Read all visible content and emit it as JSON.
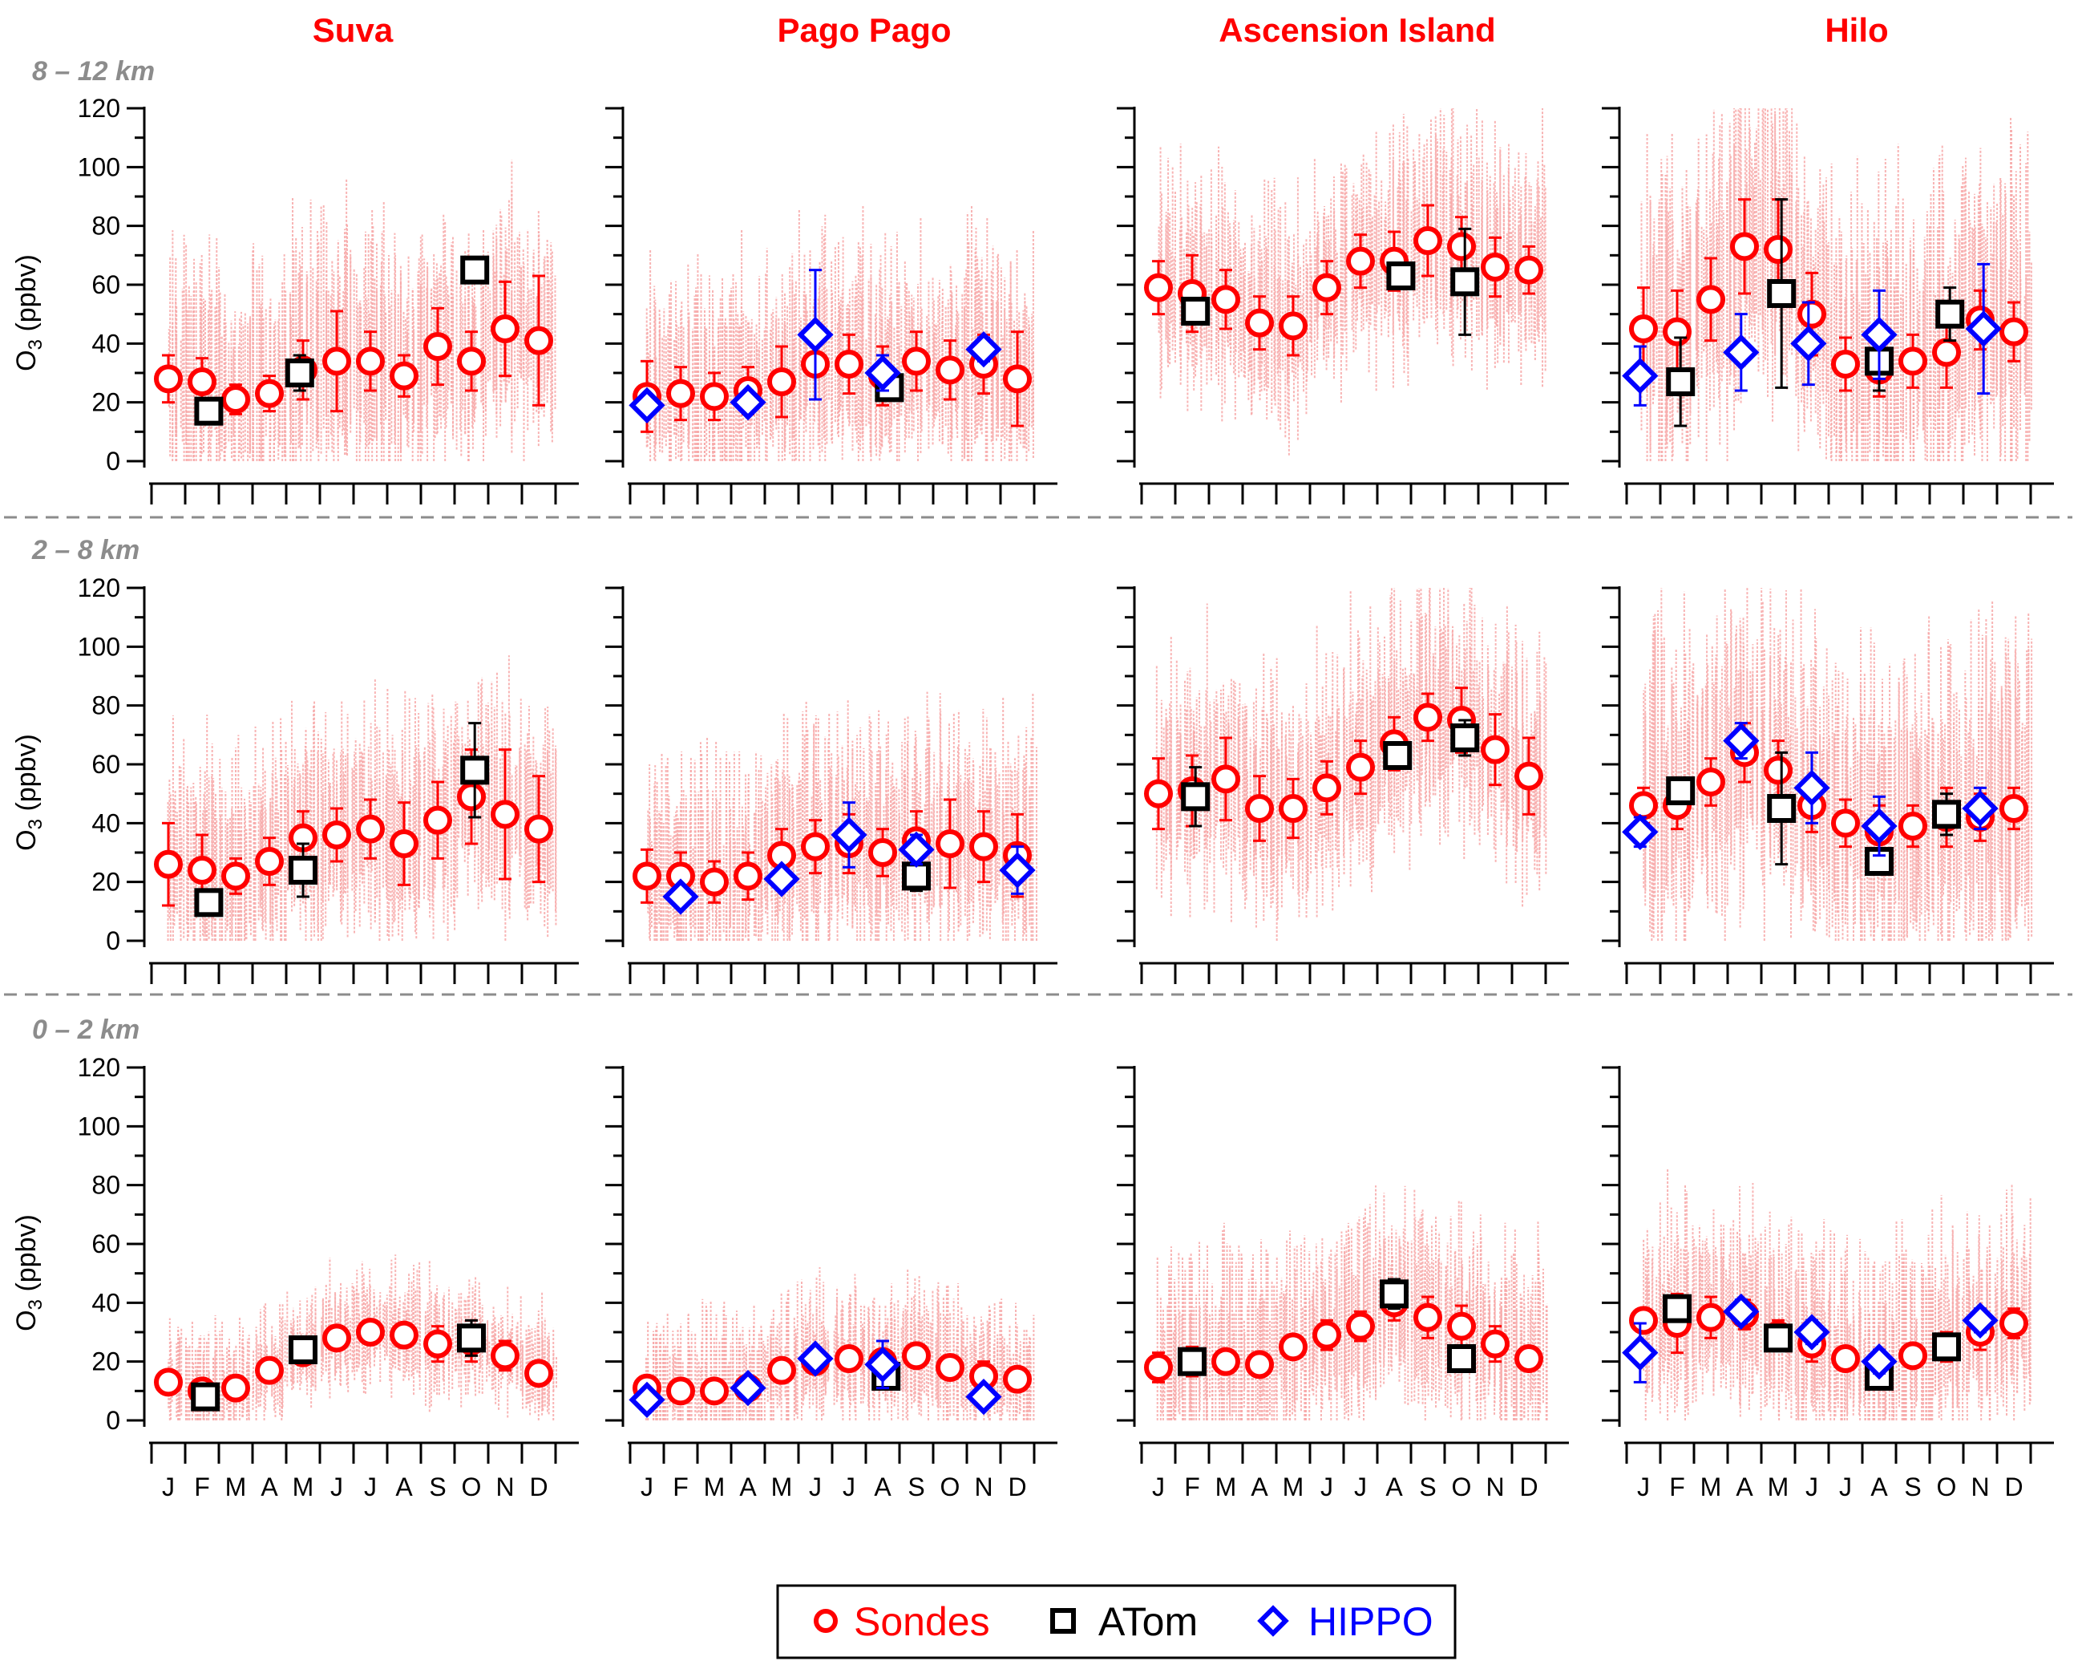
{
  "colors": {
    "sondes": "#ff0000",
    "atom": "#000000",
    "hippo": "#0000ff",
    "raw": "#f7a8a8",
    "title": "#ff0000",
    "band": "#8c8c8c",
    "separator": "#8c8c8c"
  },
  "y_axis": {
    "label": "O",
    "sub": "3",
    "unit": " (ppbv)",
    "ticks": [
      "0",
      "20",
      "40",
      "60",
      "80",
      "100",
      "120"
    ]
  },
  "month_labels": [
    "J",
    "F",
    "M",
    "A",
    "M",
    "J",
    "J",
    "A",
    "S",
    "O",
    "N",
    "D"
  ],
  "legend": {
    "sondes": "Sondes",
    "atom": "ATom",
    "hippo": "HIPPO"
  },
  "chart_data": {
    "type": "scatter",
    "xlabel": "",
    "ylabel": "O3 (ppbv)",
    "ylim": [
      0,
      120
    ],
    "x": [
      "J",
      "F",
      "M",
      "A",
      "M",
      "J",
      "J",
      "A",
      "S",
      "O",
      "N",
      "D"
    ],
    "grid": false,
    "legend_position": "bottom-center",
    "stations": [
      "Suva",
      "Pago Pago",
      "Ascension Island",
      "Hilo"
    ],
    "bands": [
      "8 – 12 km",
      "2 – 8 km",
      "0 – 2 km"
    ],
    "panels": [
      {
        "station": "Suva",
        "band": "8 – 12 km",
        "raw_level": 45,
        "raw_spread": 30,
        "sondes": [
          [
            1,
            28,
            8
          ],
          [
            2,
            27,
            8
          ],
          [
            3,
            21,
            5
          ],
          [
            4,
            23,
            6
          ],
          [
            5,
            31,
            10
          ],
          [
            6,
            34,
            17
          ],
          [
            7,
            34,
            10
          ],
          [
            8,
            29,
            7
          ],
          [
            9,
            39,
            13
          ],
          [
            10,
            34,
            10
          ],
          [
            11,
            45,
            16
          ],
          [
            12,
            41,
            22
          ]
        ],
        "atom": [
          [
            2.2,
            17,
            3
          ],
          [
            4.9,
            30,
            6
          ],
          [
            10.1,
            65,
            4
          ]
        ],
        "hippo": []
      },
      {
        "station": "Pago Pago",
        "band": "8 – 12 km",
        "raw_level": 35,
        "raw_spread": 28,
        "sondes": [
          [
            1,
            22,
            12
          ],
          [
            2,
            23,
            9
          ],
          [
            3,
            22,
            8
          ],
          [
            4,
            24,
            8
          ],
          [
            5,
            27,
            12
          ],
          [
            6,
            33,
            12
          ],
          [
            7,
            33,
            10
          ],
          [
            8,
            29,
            10
          ],
          [
            9,
            34,
            10
          ],
          [
            10,
            31,
            10
          ],
          [
            11,
            33,
            10
          ],
          [
            12,
            28,
            16
          ]
        ],
        "atom": [
          [
            8.2,
            25,
            4
          ]
        ],
        "hippo": [
          [
            1,
            19,
            3
          ],
          [
            4,
            20,
            3
          ],
          [
            6,
            43,
            22
          ],
          [
            8,
            30,
            6
          ],
          [
            11,
            38,
            4
          ]
        ]
      },
      {
        "station": "Ascension Island",
        "band": "8 – 12 km",
        "raw_level": 58,
        "raw_spread": 28,
        "sondes": [
          [
            1,
            59,
            9
          ],
          [
            2,
            57,
            13
          ],
          [
            3,
            55,
            10
          ],
          [
            4,
            47,
            9
          ],
          [
            5,
            46,
            10
          ],
          [
            6,
            59,
            9
          ],
          [
            7,
            68,
            9
          ],
          [
            8,
            68,
            10
          ],
          [
            9,
            75,
            12
          ],
          [
            10,
            73,
            10
          ],
          [
            11,
            66,
            10
          ],
          [
            12,
            65,
            8
          ]
        ],
        "atom": [
          [
            2.1,
            51,
            3
          ],
          [
            8.2,
            63,
            4
          ],
          [
            10.1,
            61,
            18
          ]
        ],
        "hippo": []
      },
      {
        "station": "Hilo",
        "band": "8 – 12 km",
        "raw_level": 55,
        "raw_spread": 40,
        "sondes": [
          [
            1,
            45,
            14
          ],
          [
            2,
            44,
            14
          ],
          [
            3,
            55,
            14
          ],
          [
            4,
            73,
            16
          ],
          [
            5,
            72,
            17
          ],
          [
            6,
            50,
            14
          ],
          [
            7,
            33,
            9
          ],
          [
            8,
            31,
            9
          ],
          [
            9,
            34,
            9
          ],
          [
            10,
            37,
            12
          ],
          [
            11,
            48,
            10
          ],
          [
            12,
            44,
            10
          ]
        ],
        "atom": [
          [
            2.1,
            27,
            15
          ],
          [
            5.1,
            57,
            32
          ],
          [
            8,
            34,
            10
          ],
          [
            10.1,
            50,
            9
          ]
        ],
        "hippo": [
          [
            0.9,
            29,
            10
          ],
          [
            3.9,
            37,
            13
          ],
          [
            5.9,
            40,
            14
          ],
          [
            8,
            43,
            15
          ],
          [
            11.1,
            45,
            22
          ]
        ]
      },
      {
        "station": "Suva",
        "band": "2 – 8 km",
        "raw_level": 42,
        "raw_spread": 28,
        "sondes": [
          [
            1,
            26,
            14
          ],
          [
            2,
            24,
            12
          ],
          [
            3,
            22,
            6
          ],
          [
            4,
            27,
            8
          ],
          [
            5,
            35,
            9
          ],
          [
            6,
            36,
            9
          ],
          [
            7,
            38,
            10
          ],
          [
            8,
            33,
            14
          ],
          [
            9,
            41,
            13
          ],
          [
            10,
            49,
            16
          ],
          [
            11,
            43,
            22
          ],
          [
            12,
            38,
            18
          ]
        ],
        "atom": [
          [
            2.2,
            13,
            3
          ],
          [
            5,
            24,
            9
          ],
          [
            10.1,
            58,
            16
          ]
        ],
        "hippo": []
      },
      {
        "station": "Pago Pago",
        "band": "2 – 8 km",
        "raw_level": 38,
        "raw_spread": 28,
        "sondes": [
          [
            1,
            22,
            9
          ],
          [
            2,
            22,
            8
          ],
          [
            3,
            20,
            7
          ],
          [
            4,
            22,
            8
          ],
          [
            5,
            29,
            9
          ],
          [
            6,
            32,
            9
          ],
          [
            7,
            33,
            10
          ],
          [
            8,
            30,
            8
          ],
          [
            9,
            34,
            10
          ],
          [
            10,
            33,
            15
          ],
          [
            11,
            32,
            12
          ],
          [
            12,
            29,
            14
          ]
        ],
        "atom": [
          [
            9,
            22,
            5
          ]
        ],
        "hippo": [
          [
            2,
            15,
            3
          ],
          [
            5,
            21,
            3
          ],
          [
            7,
            36,
            11
          ],
          [
            9,
            31,
            5
          ],
          [
            12,
            24,
            8
          ]
        ]
      },
      {
        "station": "Ascension Island",
        "band": "2 – 8 km",
        "raw_level": 55,
        "raw_spread": 30,
        "sondes": [
          [
            1,
            50,
            12
          ],
          [
            2,
            51,
            12
          ],
          [
            3,
            55,
            14
          ],
          [
            4,
            45,
            11
          ],
          [
            5,
            45,
            10
          ],
          [
            6,
            52,
            9
          ],
          [
            7,
            59,
            9
          ],
          [
            8,
            67,
            9
          ],
          [
            9,
            76,
            8
          ],
          [
            10,
            75,
            11
          ],
          [
            11,
            65,
            12
          ],
          [
            12,
            56,
            13
          ]
        ],
        "atom": [
          [
            2.1,
            49,
            10
          ],
          [
            8.1,
            63,
            4
          ],
          [
            10.1,
            69,
            6
          ]
        ],
        "hippo": []
      },
      {
        "station": "Hilo",
        "band": "2 – 8 km",
        "raw_level": 48,
        "raw_spread": 38,
        "sondes": [
          [
            1,
            46,
            6
          ],
          [
            2,
            46,
            8
          ],
          [
            3,
            54,
            8
          ],
          [
            4,
            64,
            10
          ],
          [
            5,
            58,
            10
          ],
          [
            6,
            46,
            9
          ],
          [
            7,
            40,
            8
          ],
          [
            8,
            37,
            9
          ],
          [
            9,
            39,
            7
          ],
          [
            10,
            42,
            10
          ],
          [
            11,
            42,
            8
          ],
          [
            12,
            45,
            7
          ]
        ],
        "atom": [
          [
            2.1,
            51,
            4
          ],
          [
            5.1,
            45,
            19
          ],
          [
            8,
            27,
            4
          ],
          [
            10,
            43,
            7
          ]
        ],
        "hippo": [
          [
            0.9,
            37,
            5
          ],
          [
            3.9,
            68,
            6
          ],
          [
            6,
            52,
            12
          ],
          [
            8,
            39,
            10
          ],
          [
            11,
            45,
            7
          ]
        ]
      },
      {
        "station": "Suva",
        "band": "0 – 2 km",
        "raw_level": 24,
        "raw_spread": 14,
        "sondes": [
          [
            1,
            13,
            3
          ],
          [
            2,
            10,
            4
          ],
          [
            3,
            11,
            3
          ],
          [
            4,
            17,
            4
          ],
          [
            5,
            23,
            4
          ],
          [
            6,
            28,
            4
          ],
          [
            7,
            30,
            4
          ],
          [
            8,
            29,
            4
          ],
          [
            9,
            26,
            6
          ],
          [
            10,
            27,
            7
          ],
          [
            11,
            22,
            5
          ],
          [
            12,
            16,
            4
          ]
        ],
        "atom": [
          [
            2.1,
            8,
            3
          ],
          [
            5,
            24,
            4
          ],
          [
            10,
            28,
            6
          ]
        ],
        "hippo": []
      },
      {
        "station": "Pago Pago",
        "band": "0 – 2 km",
        "raw_level": 18,
        "raw_spread": 16,
        "sondes": [
          [
            1,
            11,
            3
          ],
          [
            2,
            10,
            3
          ],
          [
            3,
            10,
            3
          ],
          [
            4,
            11,
            3
          ],
          [
            5,
            17,
            3
          ],
          [
            6,
            20,
            4
          ],
          [
            7,
            21,
            4
          ],
          [
            8,
            20,
            4
          ],
          [
            9,
            22,
            4
          ],
          [
            10,
            18,
            4
          ],
          [
            11,
            15,
            5
          ],
          [
            12,
            14,
            4
          ]
        ],
        "atom": [
          [
            8.1,
            15,
            3
          ]
        ],
        "hippo": [
          [
            1,
            7,
            2
          ],
          [
            4,
            11,
            2
          ],
          [
            6,
            21,
            3
          ],
          [
            8,
            19,
            8
          ],
          [
            11,
            8,
            2
          ]
        ]
      },
      {
        "station": "Ascension Island",
        "band": "0 – 2 km",
        "raw_level": 30,
        "raw_spread": 24,
        "sondes": [
          [
            1,
            18,
            5
          ],
          [
            2,
            20,
            5
          ],
          [
            3,
            20,
            4
          ],
          [
            4,
            19,
            4
          ],
          [
            5,
            25,
            4
          ],
          [
            6,
            29,
            5
          ],
          [
            7,
            32,
            5
          ],
          [
            8,
            40,
            6
          ],
          [
            9,
            35,
            7
          ],
          [
            10,
            32,
            7
          ],
          [
            11,
            26,
            6
          ],
          [
            12,
            21,
            4
          ]
        ],
        "atom": [
          [
            2,
            20,
            3
          ],
          [
            8,
            43,
            5
          ],
          [
            10,
            21,
            3
          ]
        ],
        "hippo": []
      },
      {
        "station": "Hilo",
        "band": "0 – 2 km",
        "raw_level": 28,
        "raw_spread": 26,
        "sondes": [
          [
            1,
            34,
            4
          ],
          [
            2,
            33,
            10
          ],
          [
            3,
            35,
            7
          ],
          [
            4,
            36,
            5
          ],
          [
            5,
            29,
            5
          ],
          [
            6,
            26,
            6
          ],
          [
            7,
            21,
            4
          ],
          [
            8,
            18,
            4
          ],
          [
            9,
            22,
            4
          ],
          [
            10,
            25,
            5
          ],
          [
            11,
            30,
            6
          ],
          [
            12,
            33,
            5
          ]
        ],
        "atom": [
          [
            2,
            38,
            4
          ],
          [
            5,
            28,
            4
          ],
          [
            8,
            15,
            3
          ],
          [
            10,
            25,
            4
          ]
        ],
        "hippo": [
          [
            0.9,
            23,
            10
          ],
          [
            3.9,
            37,
            4
          ],
          [
            6,
            30,
            4
          ],
          [
            8,
            20,
            4
          ],
          [
            11,
            34,
            4
          ]
        ]
      }
    ]
  }
}
